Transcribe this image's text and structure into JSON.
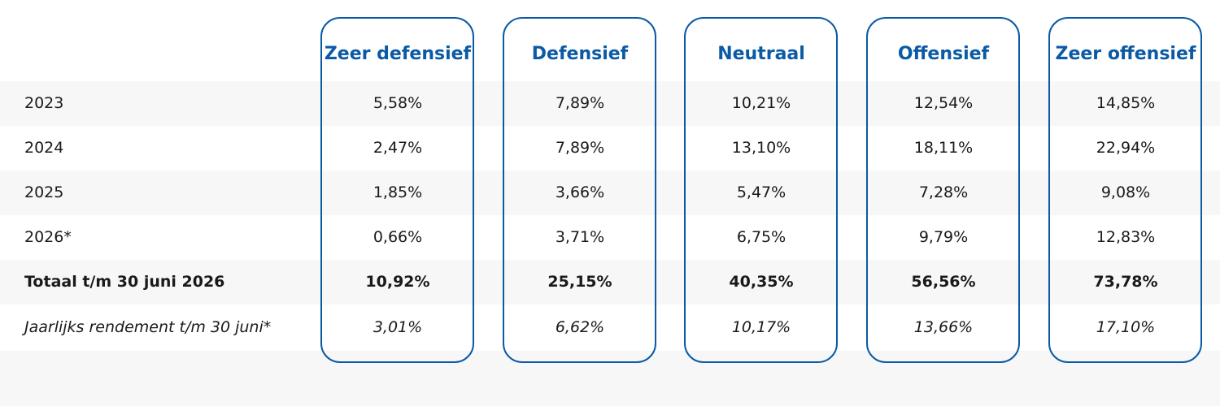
{
  "columns": [
    {
      "name": "Zeer defensief"
    },
    {
      "name": "Defensief"
    },
    {
      "name": "Neutraal"
    },
    {
      "name": "Offensief"
    },
    {
      "name": "Zeer offensief"
    }
  ],
  "rows": [
    {
      "label": "2023",
      "values": [
        "5,58%",
        "7,89%",
        "10,21%",
        "12,54%",
        "14,85%"
      ]
    },
    {
      "label": "2024",
      "values": [
        "2,47%",
        "7,89%",
        "13,10%",
        "18,11%",
        "22,94%"
      ]
    },
    {
      "label": "2025",
      "values": [
        "1,85%",
        "3,66%",
        "5,47%",
        "7,28%",
        "9,08%"
      ]
    },
    {
      "label": "2026*",
      "values": [
        "0,66%",
        "3,71%",
        "6,75%",
        "9,79%",
        "12,83%"
      ]
    },
    {
      "label": "Totaal t/m 30 juni 2026",
      "values": [
        "10,92%",
        "25,15%",
        "40,35%",
        "56,56%",
        "73,78%"
      ]
    },
    {
      "label": "Jaarlijks rendement t/m 30 juni*",
      "values": [
        "3,01%",
        "6,62%",
        "10,17%",
        "13,66%",
        "17,10%"
      ]
    }
  ],
  "colors": {
    "accent": "#0a5aa5",
    "row_shade": "#f7f7f7",
    "text": "#1a1a1a"
  }
}
